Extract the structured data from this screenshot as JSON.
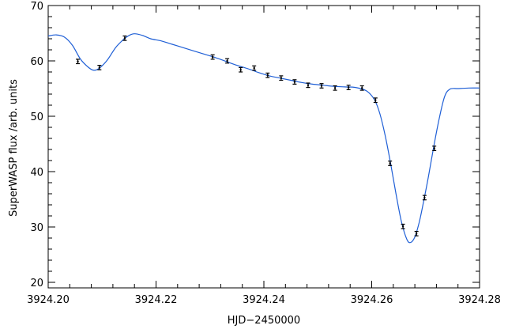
{
  "chart_data": {
    "type": "line",
    "title": "",
    "xlabel": "HJD−2450000",
    "ylabel": "SuperWASP flux /arb. units",
    "xlim": [
      3924.2,
      3924.28
    ],
    "ylim": [
      19,
      70
    ],
    "x_ticks": [
      3924.2,
      3924.22,
      3924.24,
      3924.26,
      3924.28
    ],
    "x_tick_labels": [
      "3924.20",
      "3924.22",
      "3924.24",
      "3924.26",
      "3924.28"
    ],
    "y_ticks": [
      20,
      30,
      40,
      50,
      60,
      70
    ],
    "y_tick_labels": [
      "20",
      "30",
      "40",
      "50",
      "60",
      "70"
    ],
    "grid": false,
    "colors": {
      "model": "#1f5fd6",
      "data": "#000000",
      "axes": "#000000"
    },
    "series": [
      {
        "kind": "model-curve",
        "x": [
          3924.2,
          3924.2015,
          3924.203,
          3924.2045,
          3924.206,
          3924.2075,
          3924.2085,
          3924.2095,
          3924.211,
          3924.2125,
          3924.214,
          3924.215,
          3924.216,
          3924.2175,
          3924.219,
          3924.221,
          3924.223,
          3924.225,
          3924.227,
          3924.229,
          3924.231,
          3924.233,
          3924.235,
          3924.237,
          3924.239,
          3924.241,
          3924.243,
          3924.245,
          3924.247,
          3924.249,
          3924.251,
          3924.253,
          3924.255,
          3924.257,
          3924.259,
          3924.2605,
          3924.2615,
          3924.2625,
          3924.2635,
          3924.2645,
          3924.2655,
          3924.2665,
          3924.2672,
          3924.268,
          3924.2688,
          3924.2695,
          3924.2705,
          3924.2715,
          3924.2725,
          3924.2735,
          3924.2745,
          3924.276,
          3924.278,
          3924.28
        ],
        "y": [
          64.5,
          64.7,
          64.3,
          62.8,
          60.3,
          58.8,
          58.3,
          58.7,
          60.2,
          62.4,
          63.9,
          64.6,
          64.9,
          64.6,
          64.0,
          63.6,
          63.0,
          62.4,
          61.8,
          61.2,
          60.6,
          59.9,
          59.2,
          58.6,
          57.9,
          57.3,
          56.9,
          56.5,
          56.1,
          55.8,
          55.6,
          55.4,
          55.3,
          55.2,
          54.6,
          53.0,
          50.5,
          46.5,
          41.5,
          36.0,
          31.0,
          27.8,
          27.2,
          28.2,
          30.8,
          34.0,
          39.0,
          44.5,
          49.5,
          53.5,
          54.9,
          55.0,
          55.1,
          55.1
        ]
      },
      {
        "kind": "data-points-with-error-bars",
        "x": [
          3924.2055,
          3924.2095,
          3924.2142,
          3924.2305,
          3924.2332,
          3924.2357,
          3924.2382,
          3924.2407,
          3924.2432,
          3924.2457,
          3924.2482,
          3924.2507,
          3924.2532,
          3924.2557,
          3924.2582,
          3924.2607,
          3924.2634,
          3924.2658,
          3924.2683,
          3924.2698,
          3924.2716
        ],
        "y": [
          59.9,
          58.8,
          64.1,
          60.7,
          60.0,
          58.4,
          58.7,
          57.4,
          56.9,
          56.2,
          55.6,
          55.5,
          55.1,
          55.2,
          55.1,
          52.9,
          41.5,
          30.1,
          28.8,
          35.3,
          44.2
        ],
        "yerr": [
          0.4,
          0.4,
          0.4,
          0.4,
          0.4,
          0.4,
          0.4,
          0.4,
          0.4,
          0.4,
          0.4,
          0.4,
          0.4,
          0.4,
          0.4,
          0.4,
          0.4,
          0.4,
          0.4,
          0.4,
          0.4
        ]
      }
    ]
  }
}
